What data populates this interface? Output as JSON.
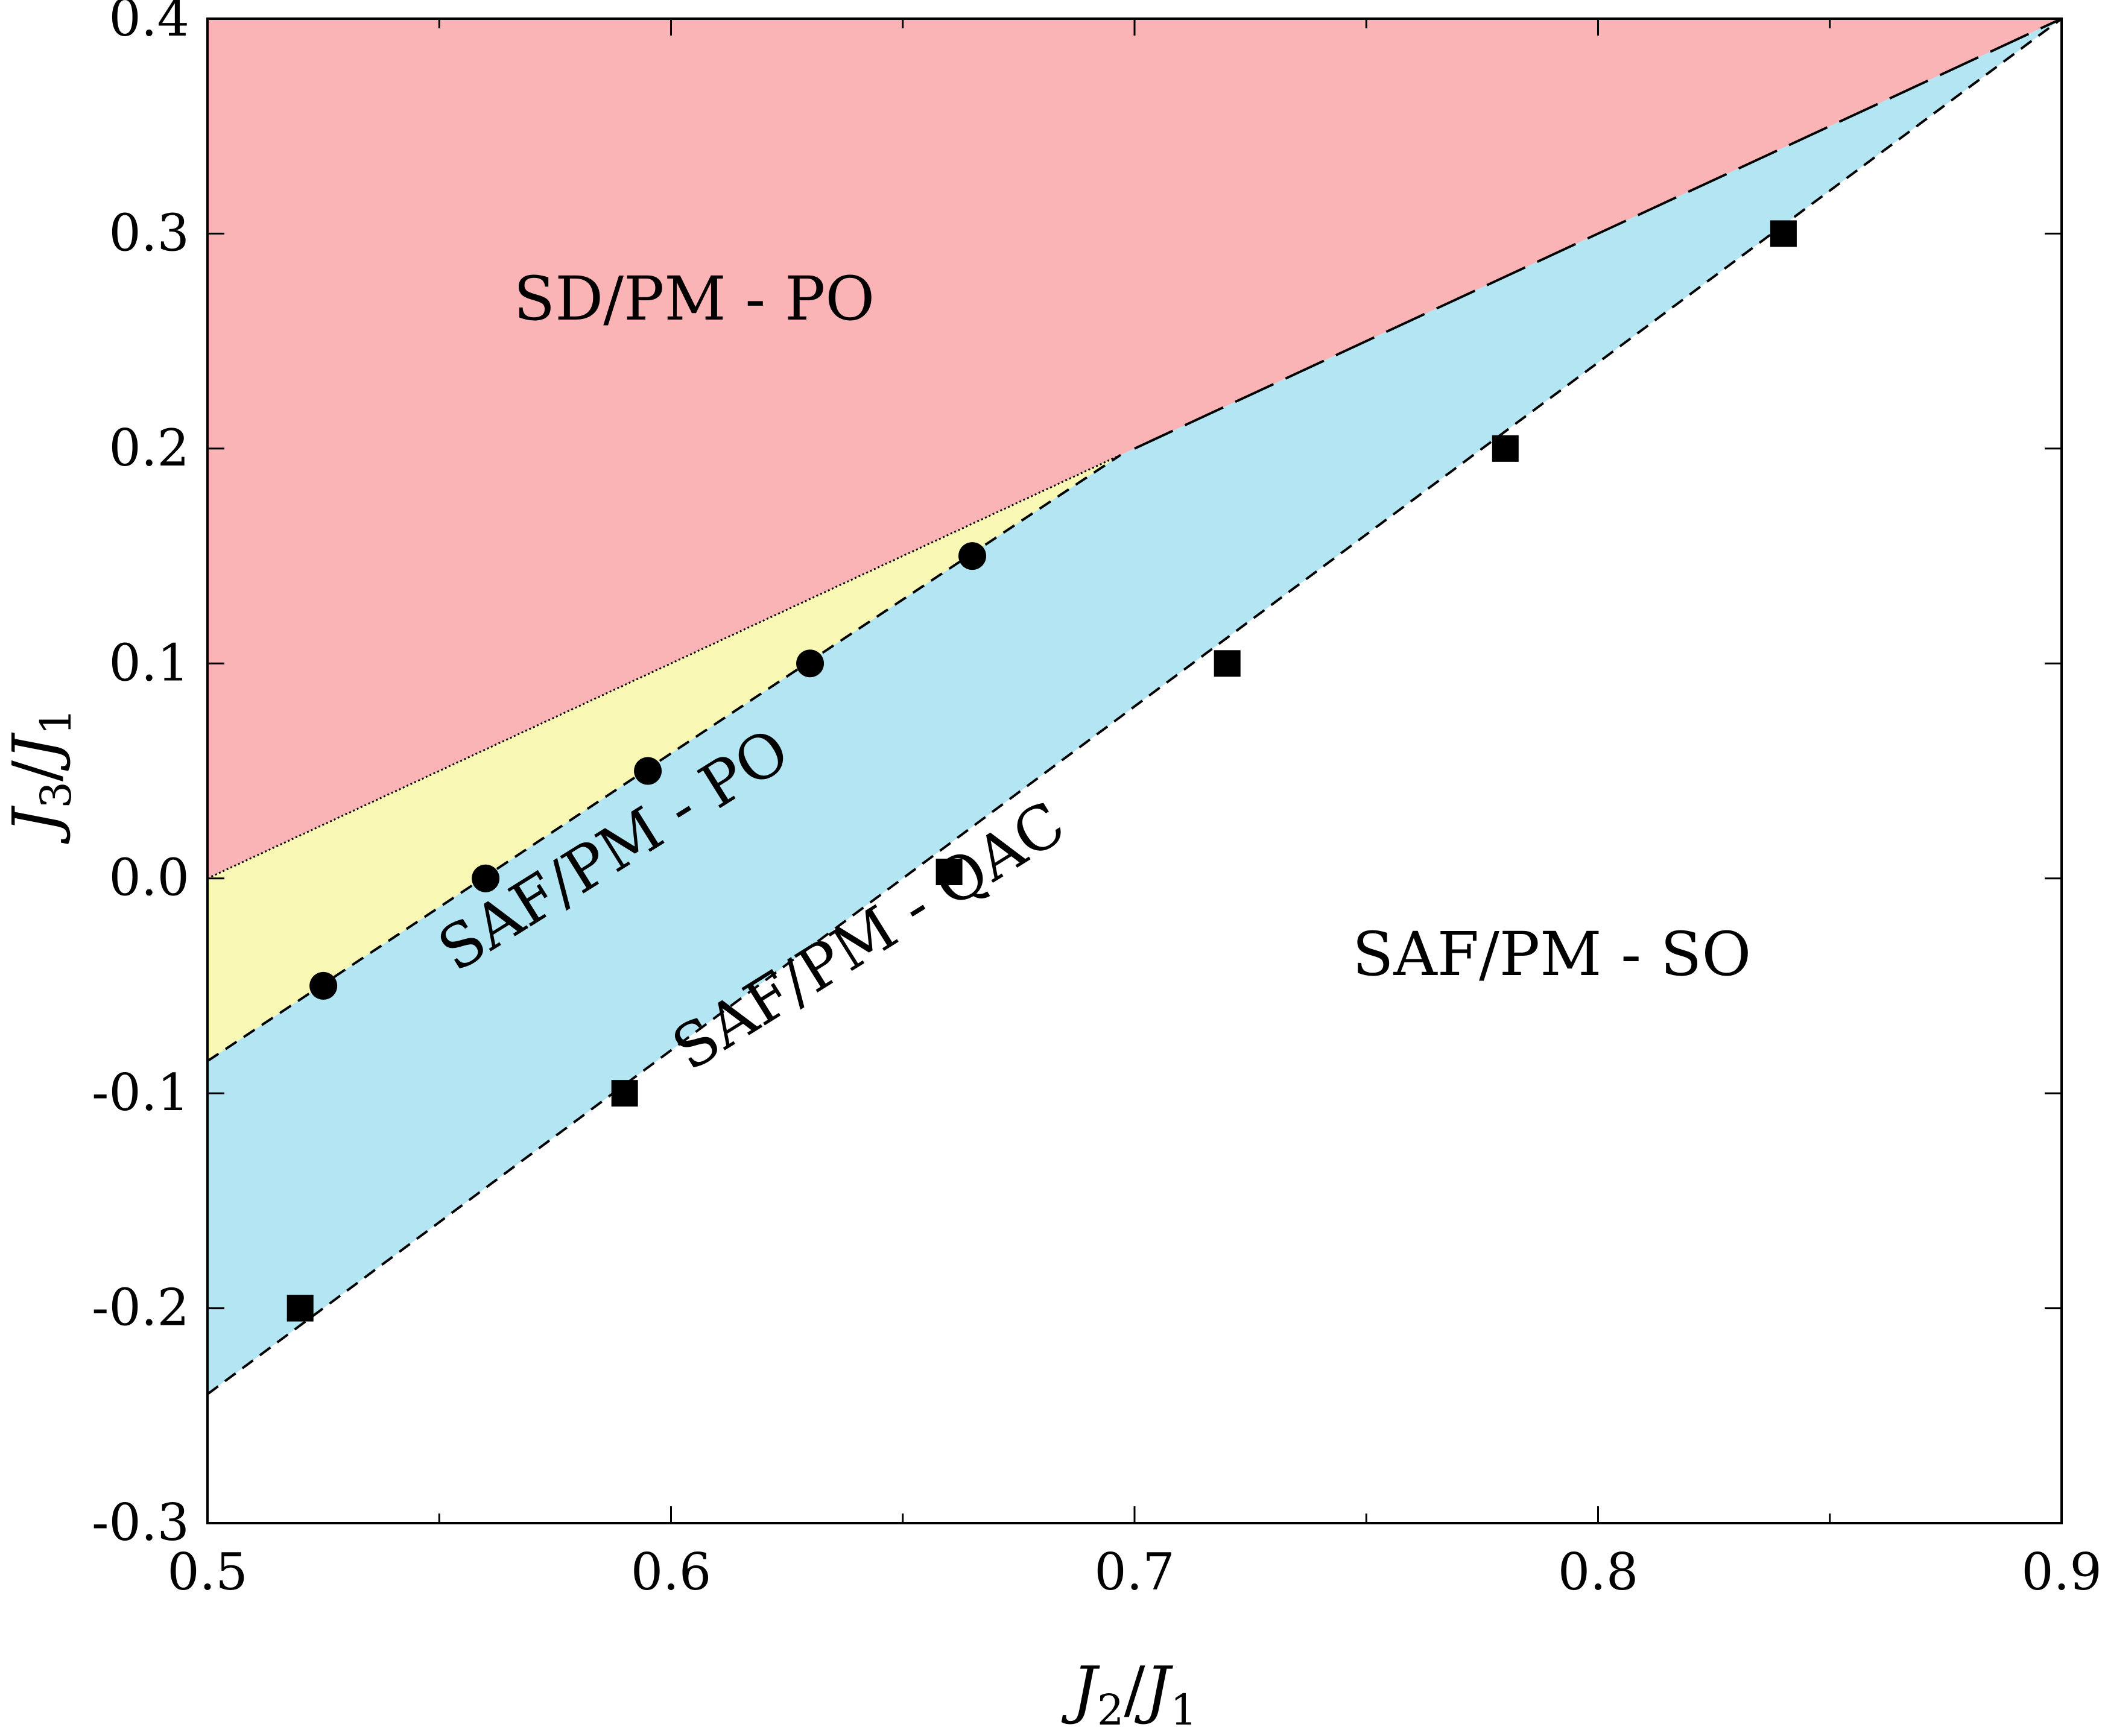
{
  "chart_data": {
    "type": "scatter",
    "title": "",
    "xlabel": {
      "var": "J",
      "sub": "2",
      "sep": "/",
      "var2": "J",
      "sub2": "1"
    },
    "ylabel": {
      "var": "J",
      "sub": "3",
      "sep": "/",
      "var2": "J",
      "sub2": "1"
    },
    "xlim": [
      0.5,
      0.9
    ],
    "ylim": [
      -0.3,
      0.4
    ],
    "x_ticks": [
      0.5,
      0.6,
      0.7,
      0.8,
      0.9
    ],
    "y_ticks": [
      -0.3,
      -0.2,
      -0.1,
      0.0,
      0.1,
      0.2,
      0.3,
      0.4
    ],
    "x_tick_labels": [
      "0.5",
      "0.6",
      "0.7",
      "0.8",
      "0.9"
    ],
    "y_tick_labels": [
      "-0.3",
      "-0.2",
      "-0.1",
      "0.0",
      "0.1",
      "0.2",
      "0.3",
      "0.4"
    ],
    "x_minor_ticks": [
      0.55,
      0.65,
      0.75,
      0.85
    ],
    "grid": false,
    "colors": {
      "sd_po": "#fbb4b6",
      "saf_po": "#f8f8b4",
      "saf_qac": "#b3e5f3"
    },
    "boundaries": {
      "sd_saf_po_dotted": [
        [
          0.5,
          0.0
        ],
        [
          0.697,
          0.197
        ]
      ],
      "sd_saf_qac_longdash": [
        [
          0.7,
          0.2
        ],
        [
          0.72,
          0.22
        ],
        [
          0.78,
          0.28
        ],
        [
          0.84,
          0.34
        ],
        [
          0.9,
          0.4
        ]
      ],
      "po_qac_dashed": [
        [
          0.5,
          -0.085
        ],
        [
          0.697,
          0.197
        ]
      ],
      "qac_so_dashed": [
        [
          0.5,
          -0.24
        ],
        [
          0.9,
          0.4
        ]
      ]
    },
    "series": [
      {
        "marker": "circle",
        "points": [
          [
            0.525,
            -0.05
          ],
          [
            0.56,
            0.0
          ],
          [
            0.595,
            0.05
          ],
          [
            0.63,
            0.1
          ],
          [
            0.665,
            0.15
          ]
        ]
      },
      {
        "marker": "square",
        "points": [
          [
            0.52,
            -0.2
          ],
          [
            0.59,
            -0.1
          ],
          [
            0.66,
            0.003
          ],
          [
            0.72,
            0.1
          ],
          [
            0.78,
            0.2
          ],
          [
            0.84,
            0.3
          ]
        ]
      }
    ],
    "regions": [
      {
        "label": "SD/PM - PO",
        "x": 0.605,
        "y": 0.26,
        "rotate": 0
      },
      {
        "label": "SAF/PM - PO",
        "x": 0.59,
        "y": 0.005,
        "rotate": -32
      },
      {
        "label": "SAF/PM - QAC",
        "x": 0.645,
        "y": -0.035,
        "rotate": -32
      },
      {
        "label": "SAF/PM - SO",
        "x": 0.79,
        "y": -0.045,
        "rotate": 0
      }
    ]
  }
}
